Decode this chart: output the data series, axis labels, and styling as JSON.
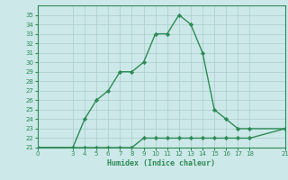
{
  "xlabel": "Humidex (Indice chaleur)",
  "line1_x": [
    0,
    3,
    4,
    5,
    6,
    7,
    8,
    9,
    10,
    11,
    12,
    13,
    14,
    15,
    16,
    17,
    18,
    21
  ],
  "line1_y": [
    21,
    21,
    24,
    26,
    27,
    29,
    29,
    30,
    33,
    33,
    35,
    34,
    31,
    25,
    24,
    23,
    23,
    23
  ],
  "line2_x": [
    0,
    3,
    4,
    5,
    6,
    7,
    8,
    9,
    10,
    11,
    12,
    13,
    14,
    15,
    16,
    17,
    18,
    21
  ],
  "line2_y": [
    21,
    21,
    21,
    21,
    21,
    21,
    21,
    22,
    22,
    22,
    22,
    22,
    22,
    22,
    22,
    22,
    22,
    23
  ],
  "line_color": "#2e8b57",
  "bg_color": "#cce8e8",
  "grid_color": "#aacccc",
  "xlim": [
    0,
    21
  ],
  "ylim": [
    21,
    36
  ],
  "xticks": [
    0,
    3,
    4,
    5,
    6,
    7,
    8,
    9,
    10,
    11,
    12,
    13,
    14,
    15,
    16,
    17,
    18,
    21
  ],
  "yticks": [
    21,
    22,
    23,
    24,
    25,
    26,
    27,
    28,
    29,
    30,
    31,
    32,
    33,
    34,
    35
  ],
  "marker": "D",
  "markersize": 2.2,
  "linewidth": 1.0
}
